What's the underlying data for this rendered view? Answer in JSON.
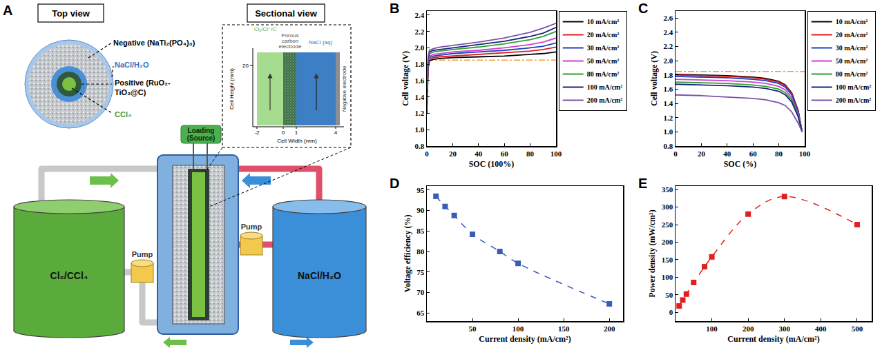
{
  "diagram": {
    "panel_label": "A",
    "top_view": {
      "title": "Top view",
      "labels": {
        "negative": "Negative (NaTi₂(PO₄)₃)",
        "electrolyte": "NaCl/H₂O",
        "positive": "Positive (RuO₂-TiO₂@C)",
        "catholyte": "CCl₄"
      }
    },
    "sectional_view": {
      "title": "Sectional view",
      "layers": [
        "Cl₂/Cl⁻/C",
        "Porous carbon electrode",
        "NaCl (aq)",
        "Negative electrode"
      ],
      "y_label": "Cell Height (mm)",
      "y_tick": "20",
      "x_label": "Cell Width (mm)",
      "x_ticks": [
        "-2",
        "0",
        "1",
        "4"
      ]
    },
    "loading": "Loading (Source)",
    "tanks": {
      "left": "Cl₂/CCl₄",
      "right": "NaCl/H₂O"
    },
    "pumps": [
      "Pump",
      "Pump"
    ]
  },
  "chart_data": [
    {
      "panel_label": "B",
      "type": "line",
      "x_label": "SOC (100%)",
      "y_label": "Cell voltage (V)",
      "x": [
        0,
        1,
        2,
        5,
        10,
        20,
        40,
        60,
        80,
        90,
        100
      ],
      "series": [
        {
          "name": "10 mA/cm²",
          "color": "#000000",
          "values": [
            1.2,
            1.75,
            1.84,
            1.86,
            1.87,
            1.88,
            1.89,
            1.9,
            1.92,
            1.93,
            1.95
          ]
        },
        {
          "name": "20 mA/cm²",
          "color": "#e41a1c",
          "values": [
            1.25,
            1.78,
            1.86,
            1.88,
            1.89,
            1.9,
            1.92,
            1.94,
            1.96,
            1.98,
            2.01
          ]
        },
        {
          "name": "30 mA/cm²",
          "color": "#1f3fbf",
          "values": [
            1.3,
            1.8,
            1.88,
            1.9,
            1.91,
            1.93,
            1.95,
            1.97,
            2.0,
            2.02,
            2.06
          ]
        },
        {
          "name": "50 mA/cm²",
          "color": "#d03fd0",
          "values": [
            1.35,
            1.82,
            1.9,
            1.92,
            1.93,
            1.95,
            1.97,
            2.0,
            2.04,
            2.07,
            2.12
          ]
        },
        {
          "name": "80 mA/cm²",
          "color": "#2ca02c",
          "values": [
            1.4,
            1.85,
            1.93,
            1.95,
            1.96,
            1.98,
            2.01,
            2.05,
            2.1,
            2.14,
            2.2
          ]
        },
        {
          "name": "100 mA/cm²",
          "color": "#1a237e",
          "values": [
            1.45,
            1.87,
            1.95,
            1.97,
            1.98,
            2.0,
            2.04,
            2.08,
            2.14,
            2.18,
            2.25
          ]
        },
        {
          "name": "200 mA/cm²",
          "color": "#7b52ab",
          "values": [
            1.5,
            1.9,
            1.97,
            1.99,
            2.01,
            2.03,
            2.07,
            2.12,
            2.19,
            2.24,
            2.3
          ]
        }
      ],
      "xlim": [
        0,
        100
      ],
      "xticks": [
        0,
        20,
        40,
        60,
        80,
        100
      ],
      "ylim": [
        0.8,
        2.45
      ],
      "yticks": [
        0.8,
        {
          "value": 1,
          "label": "1.0"
        },
        1.2,
        1.4,
        1.6,
        1.8,
        {
          "value": 2,
          "label": "2.0"
        },
        2.2,
        2.4
      ],
      "reference_lines": [
        {
          "y": 1.85,
          "color": "#f0a030",
          "line_style": "dashdot"
        }
      ],
      "line_style": "solid",
      "legend": "right",
      "grid": false
    },
    {
      "panel_label": "C",
      "type": "line",
      "x_label": "SOC (%)",
      "y_label": "Cell voltage (V)",
      "x": [
        0,
        20,
        40,
        60,
        70,
        80,
        85,
        90,
        95,
        98
      ],
      "series": [
        {
          "name": "10 mA/cm²",
          "color": "#000000",
          "values": [
            1.81,
            1.8,
            1.79,
            1.77,
            1.75,
            1.71,
            1.66,
            1.55,
            1.3,
            1.0
          ]
        },
        {
          "name": "20 mA/cm²",
          "color": "#e41a1c",
          "values": [
            1.8,
            1.79,
            1.78,
            1.76,
            1.74,
            1.7,
            1.65,
            1.54,
            1.29,
            1.0
          ]
        },
        {
          "name": "30 mA/cm²",
          "color": "#1f3fbf",
          "values": [
            1.78,
            1.77,
            1.76,
            1.74,
            1.72,
            1.68,
            1.63,
            1.52,
            1.28,
            1.0
          ]
        },
        {
          "name": "50 mA/cm²",
          "color": "#d03fd0",
          "values": [
            1.74,
            1.73,
            1.72,
            1.7,
            1.68,
            1.64,
            1.59,
            1.48,
            1.25,
            1.0
          ]
        },
        {
          "name": "80 mA/cm²",
          "color": "#2ca02c",
          "values": [
            1.7,
            1.69,
            1.68,
            1.66,
            1.64,
            1.6,
            1.55,
            1.45,
            1.23,
            1.0
          ]
        },
        {
          "name": "100 mA/cm²",
          "color": "#1a237e",
          "values": [
            1.67,
            1.66,
            1.65,
            1.63,
            1.61,
            1.57,
            1.52,
            1.42,
            1.21,
            1.0
          ]
        },
        {
          "name": "200 mA/cm²",
          "color": "#7b52ab",
          "values": [
            1.52,
            1.51,
            1.49,
            1.47,
            1.45,
            1.41,
            1.37,
            1.28,
            1.12,
            1.0
          ]
        }
      ],
      "xlim": [
        0,
        100
      ],
      "xticks": [
        0,
        20,
        40,
        60,
        80,
        100
      ],
      "ylim": [
        0.8,
        2.7
      ],
      "yticks": [
        0.8,
        {
          "value": 1,
          "label": "1.0"
        },
        1.2,
        1.4,
        1.6,
        1.8,
        {
          "value": 2,
          "label": "2.0"
        },
        2.2,
        2.4,
        2.6
      ],
      "reference_lines": [
        {
          "y": 1.85,
          "color": "#f0a030",
          "line_style": "dashdot"
        }
      ],
      "line_style": "solid",
      "legend": "right",
      "grid": false
    },
    {
      "panel_label": "D",
      "type": "line",
      "x_label": "Current density (mA/cm²)",
      "y_label": "Voltage efficiency (%)",
      "x": [
        10,
        20,
        30,
        50,
        80,
        100,
        200
      ],
      "series": [
        {
          "color": "#3a5bb8",
          "values": [
            93.5,
            91,
            88.8,
            84.2,
            80,
            77.1,
            67.2
          ],
          "marker": "square",
          "line_style": "dash"
        }
      ],
      "xlim": [
        0,
        215
      ],
      "xticks": [
        50,
        100,
        150,
        200
      ],
      "ylim": [
        63,
        96
      ],
      "yticks": [
        65,
        70,
        75,
        80,
        85,
        90,
        95
      ],
      "grid": false
    },
    {
      "panel_label": "E",
      "type": "line",
      "x_label": "Current density (mA/cm²)",
      "y_label": "Power density (mW/cm²)",
      "x": [
        10,
        20,
        30,
        50,
        80,
        100,
        200,
        300,
        500
      ],
      "series": [
        {
          "color": "#e02020",
          "values": [
            18,
            35,
            52,
            85,
            130,
            158,
            280,
            330,
            250
          ],
          "marker": "square",
          "line_style": "dash"
        }
      ],
      "xlim": [
        0,
        540
      ],
      "xticks": [
        100,
        200,
        300,
        400,
        500
      ],
      "ylim": [
        -25,
        360
      ],
      "yticks": [
        0,
        50,
        100,
        150,
        200,
        250,
        300,
        350
      ],
      "grid": false
    }
  ]
}
